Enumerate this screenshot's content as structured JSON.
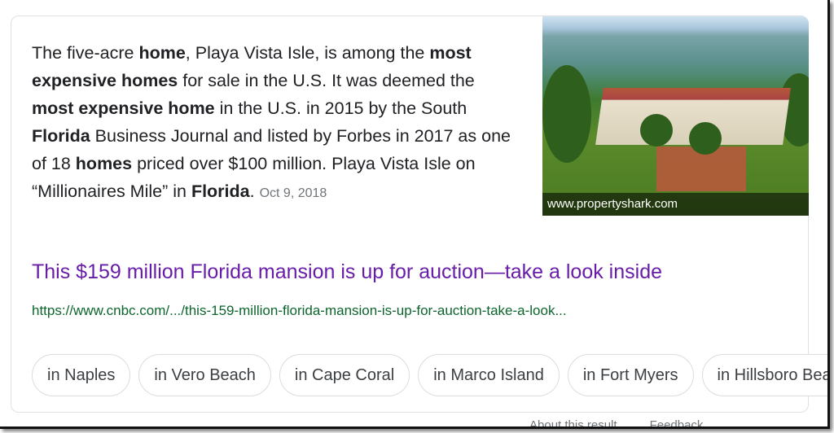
{
  "snippet": {
    "parts": [
      "The five-acre ",
      "home",
      ", Playa Vista Isle, is among the ",
      "most expensive homes",
      " for sale in the U.S. It was deemed the ",
      "most expensive home",
      " in the U.S. in 2015 by the South ",
      "Florida",
      " Business Journal and listed by Forbes in 2017 as one of 18 ",
      "homes",
      " priced over $100 million. Playa Vista Isle on “Millionaires Mile” in ",
      "Florida",
      "."
    ],
    "date": "Oct 9, 2018"
  },
  "image": {
    "credit": "www.propertyshark.com"
  },
  "result": {
    "title": "This $159 million Florida mansion is up for auction—take a look inside",
    "url": "https://www.cnbc.com/.../this-159-million-florida-mansion-is-up-for-auction-take-a-look..."
  },
  "chips": [
    "in Naples",
    "in Vero Beach",
    "in Cape Coral",
    "in Marco Island",
    "in Fort Myers",
    "in Hillsboro Beach"
  ],
  "footer": {
    "about": "About this result",
    "feedback": "Feedback"
  },
  "colors": {
    "link": "#681da8",
    "url": "#0d652d"
  }
}
